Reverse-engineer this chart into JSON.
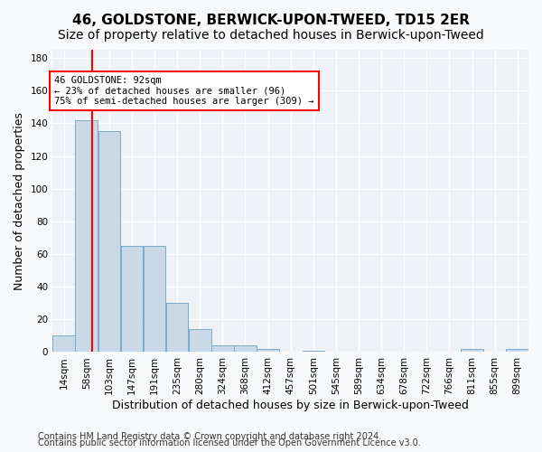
{
  "title": "46, GOLDSTONE, BERWICK-UPON-TWEED, TD15 2ER",
  "subtitle": "Size of property relative to detached houses in Berwick-upon-Tweed",
  "xlabel": "Distribution of detached houses by size in Berwick-upon-Tweed",
  "ylabel": "Number of detached properties",
  "footer1": "Contains HM Land Registry data © Crown copyright and database right 2024.",
  "footer2": "Contains public sector information licensed under the Open Government Licence v3.0.",
  "annotation_title": "46 GOLDSTONE: 92sqm",
  "annotation_line1": "← 23% of detached houses are smaller (96)",
  "annotation_line2": "75% of semi-detached houses are larger (309) →",
  "bar_color": "#c9d9e8",
  "bar_edge_color": "#7baac9",
  "redline_x": 92,
  "categories": [
    "14sqm",
    "58sqm",
    "103sqm",
    "147sqm",
    "191sqm",
    "235sqm",
    "280sqm",
    "324sqm",
    "368sqm",
    "412sqm",
    "457sqm",
    "501sqm",
    "545sqm",
    "589sqm",
    "634sqm",
    "678sqm",
    "722sqm",
    "766sqm",
    "811sqm",
    "855sqm",
    "899sqm"
  ],
  "bin_edges": [
    14,
    58,
    103,
    147,
    191,
    235,
    280,
    324,
    368,
    412,
    457,
    501,
    545,
    589,
    634,
    678,
    722,
    766,
    811,
    855,
    899,
    943
  ],
  "values": [
    10,
    142,
    135,
    65,
    65,
    30,
    14,
    4,
    4,
    2,
    0,
    1,
    0,
    0,
    0,
    0,
    0,
    0,
    2,
    0,
    2
  ],
  "ylim": [
    0,
    185
  ],
  "yticks": [
    0,
    20,
    40,
    60,
    80,
    100,
    120,
    140,
    160,
    180
  ],
  "background_color": "#eef2f7",
  "grid_color": "#ffffff",
  "title_fontsize": 11,
  "subtitle_fontsize": 10,
  "axis_label_fontsize": 9,
  "tick_fontsize": 7.5,
  "footer_fontsize": 7
}
